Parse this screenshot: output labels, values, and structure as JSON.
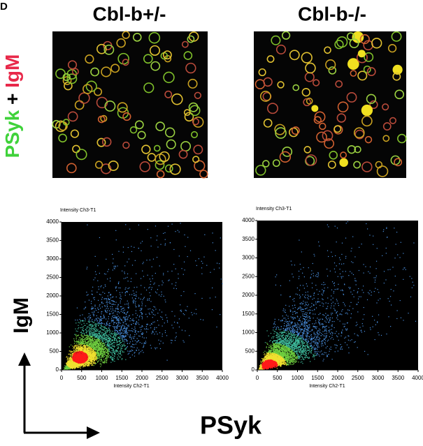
{
  "panel_label": "D",
  "columns": [
    "Cbl-b+/-",
    "Cbl-b-/-"
  ],
  "image_label": {
    "parts": [
      "PSyk",
      "+",
      "IgM"
    ]
  },
  "plots": [
    {
      "y_axis_title": "Intensity Ch3-T1",
      "x_axis_title": "Intensity Ch2-T1",
      "xlim": [
        0,
        4000
      ],
      "ylim": [
        0,
        4000
      ],
      "xticks": [
        0,
        500,
        1000,
        1500,
        2000,
        2500,
        3000,
        3500,
        4000
      ],
      "yticks": [
        0,
        500,
        1000,
        1500,
        2000,
        2500,
        3000,
        3500,
        4000
      ]
    },
    {
      "y_axis_title": "Intensity Ch3-T1",
      "x_axis_title": "Intensity Ch2-T1",
      "xlim": [
        0,
        4000
      ],
      "ylim": [
        0,
        4000
      ],
      "xticks": [
        0,
        500,
        1000,
        1500,
        2000,
        2500,
        3000,
        3500,
        4000
      ],
      "yticks": [
        0,
        500,
        1000,
        1500,
        2000,
        2500,
        3000,
        3500,
        4000
      ]
    }
  ],
  "y_label": "IgM",
  "x_label": "PSyk"
}
